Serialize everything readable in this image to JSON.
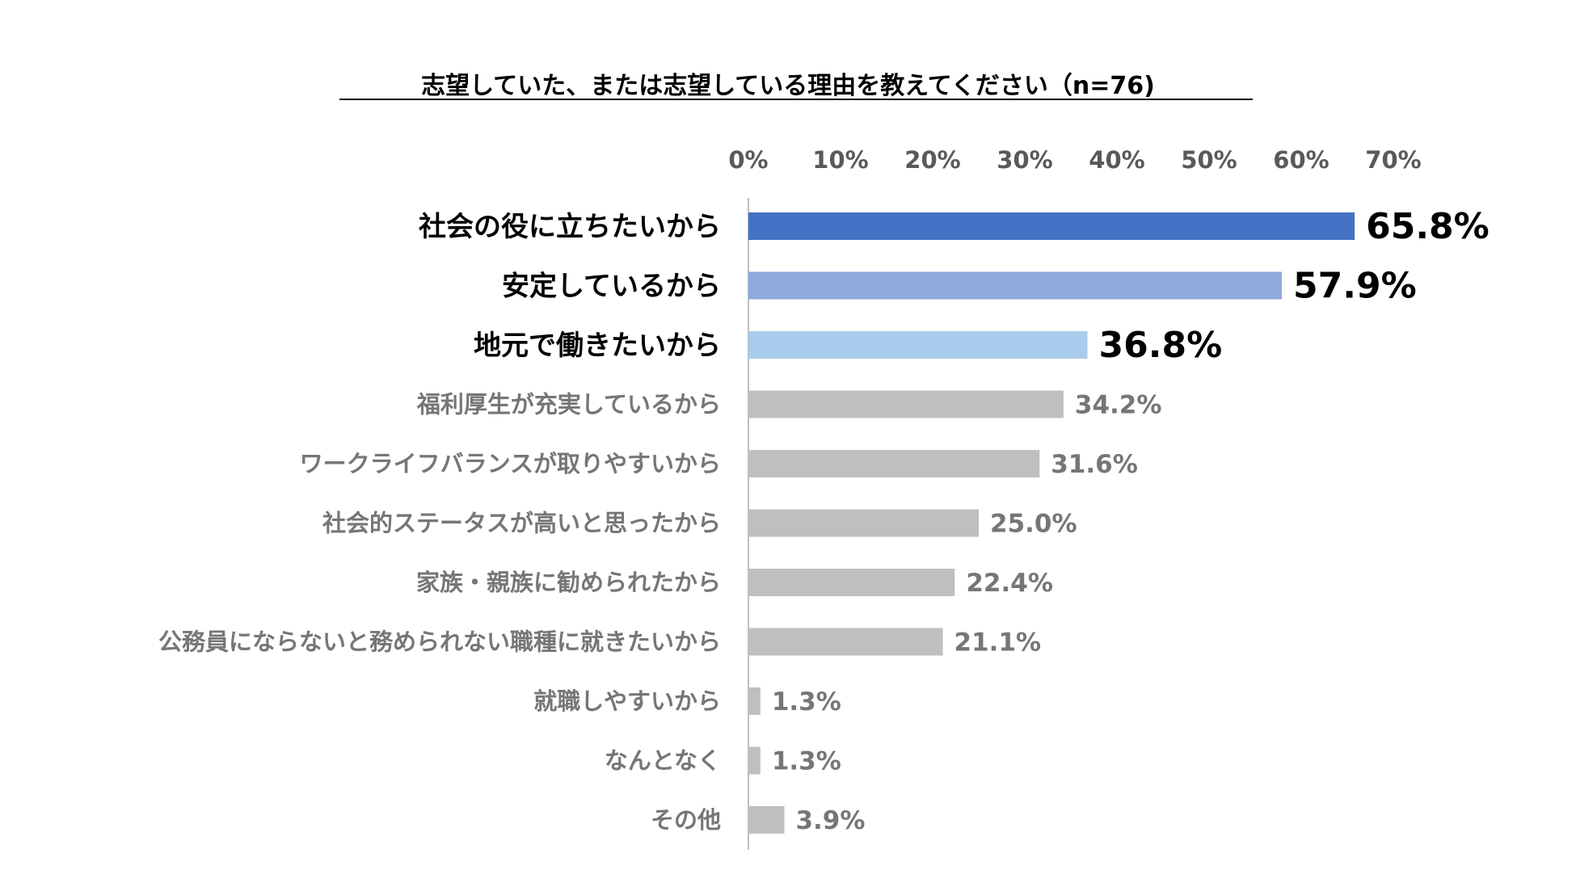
{
  "chart_data": {
    "type": "bar",
    "orientation": "horizontal",
    "title": "志望していた、または志望している理由を教えてください（n=76)",
    "xlabel": "",
    "ylabel": "",
    "xlim": [
      0,
      70
    ],
    "x_ticks": [
      0,
      10,
      20,
      30,
      40,
      50,
      60,
      70
    ],
    "tick_suffix": "%",
    "grid": false,
    "categories": [
      "社会の役に立ちたいから",
      "安定しているから",
      "地元で働きたいから",
      "福利厚生が充実しているから",
      "ワークライフバランスが取りやすいから",
      "社会的ステータスが高いと思ったから",
      "家族・親族に勧められたから",
      "公務員にならないと務められない職種に就きたいから",
      "就職しやすいから",
      "なんとなく",
      "その他"
    ],
    "values": [
      65.8,
      57.9,
      36.8,
      34.2,
      31.6,
      25.0,
      22.4,
      21.1,
      1.3,
      1.3,
      3.9
    ],
    "value_labels": [
      "65.8%",
      "57.9%",
      "36.8%",
      "34.2%",
      "31.6%",
      "25.0%",
      "22.4%",
      "21.1%",
      "1.3%",
      "1.3%",
      "3.9%"
    ],
    "highlight": [
      true,
      true,
      true,
      false,
      false,
      false,
      false,
      false,
      false,
      false,
      false
    ],
    "bar_colors": [
      "#4472C4",
      "#8FAADC",
      "#A9CBEC",
      "#BFBFBF",
      "#BFBFBF",
      "#BFBFBF",
      "#BFBFBF",
      "#BFBFBF",
      "#BFBFBF",
      "#BFBFBF",
      "#BFBFBF"
    ],
    "colors": {
      "highlight_text": "#000000",
      "muted_text": "#767676",
      "axis_line": "#BFBFBF",
      "tick_text": "#595959",
      "title_text": "#000000"
    }
  }
}
